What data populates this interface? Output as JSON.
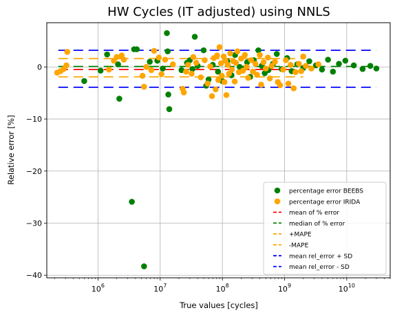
{
  "chart_data": {
    "type": "scatter",
    "title": "HW Cycles (IT adjusted) using NNLS",
    "xlabel": "True values [cycles]",
    "ylabel": "Relative error [%]",
    "xscale": "log",
    "xlim": [
      150000,
      50000000000
    ],
    "ylim": [
      -40.5,
      8.5
    ],
    "xticks": [
      {
        "value": 1000000,
        "base": "10",
        "exp": "6"
      },
      {
        "value": 10000000,
        "base": "10",
        "exp": "7"
      },
      {
        "value": 100000000,
        "base": "10",
        "exp": "8"
      },
      {
        "value": 1000000000,
        "base": "10",
        "exp": "9"
      },
      {
        "value": 10000000000,
        "base": "10",
        "exp": "10"
      }
    ],
    "yticks": [
      {
        "value": 0,
        "label": "0"
      },
      {
        "value": -10,
        "label": "−10"
      },
      {
        "value": -20,
        "label": "−20"
      },
      {
        "value": -30,
        "label": "−30"
      },
      {
        "value": -40,
        "label": "−40"
      }
    ],
    "grid": true,
    "legend_position": "bottom-right",
    "series": [
      {
        "name": "percentage error BEEBS",
        "kind": "scatter",
        "color": "#008000",
        "points": [
          [
            600000,
            -2.7
          ],
          [
            1100000,
            -0.7
          ],
          [
            1400000,
            2.4
          ],
          [
            2100000,
            0.5
          ],
          [
            2200000,
            -6.1
          ],
          [
            3500000,
            -25.9
          ],
          [
            3800000,
            3.4
          ],
          [
            4200000,
            3.4
          ],
          [
            5500000,
            -38.3
          ],
          [
            6800000,
            1.0
          ],
          [
            9000000,
            1.2
          ],
          [
            11000000,
            -0.3
          ],
          [
            12800000,
            6.5
          ],
          [
            13200000,
            3.0
          ],
          [
            13500000,
            -5.3
          ],
          [
            14000000,
            -8.1
          ],
          [
            22000000,
            -0.6
          ],
          [
            27000000,
            0.8
          ],
          [
            30000000,
            1.3
          ],
          [
            33000000,
            -0.4
          ],
          [
            36000000,
            5.8
          ],
          [
            40000000,
            0.2
          ],
          [
            50000000,
            3.2
          ],
          [
            55000000,
            -3.6
          ],
          [
            60000000,
            -2.4
          ],
          [
            70000000,
            0.4
          ],
          [
            85000000,
            -0.9
          ],
          [
            100000000,
            -2.7
          ],
          [
            120000000,
            1.1
          ],
          [
            140000000,
            -1.6
          ],
          [
            160000000,
            2.3
          ],
          [
            190000000,
            0.0
          ],
          [
            220000000,
            -0.3
          ],
          [
            250000000,
            0.9
          ],
          [
            280000000,
            -1.9
          ],
          [
            320000000,
            1.3
          ],
          [
            380000000,
            3.2
          ],
          [
            430000000,
            0.2
          ],
          [
            480000000,
            -1.2
          ],
          [
            550000000,
            -0.6
          ],
          [
            650000000,
            0.6
          ],
          [
            750000000,
            2.5
          ],
          [
            900000000,
            -0.4
          ],
          [
            1100000000,
            1.7
          ],
          [
            1300000000,
            -0.8
          ],
          [
            1600000000,
            0.5
          ],
          [
            2000000000,
            -0.2
          ],
          [
            2500000000,
            1.1
          ],
          [
            3200000000,
            0.3
          ],
          [
            4000000000,
            -0.5
          ],
          [
            5000000000,
            1.4
          ],
          [
            6000000000,
            -0.9
          ],
          [
            7500000000,
            0.6
          ],
          [
            9500000000,
            1.2
          ],
          [
            13000000000,
            0.3
          ],
          [
            18000000000,
            -0.4
          ],
          [
            24000000000,
            0.2
          ],
          [
            30000000000,
            -0.3
          ]
        ]
      },
      {
        "name": "percentage error IRIDA",
        "kind": "scatter",
        "color": "#ffa500",
        "points": [
          [
            220000,
            -1.1
          ],
          [
            250000,
            -0.8
          ],
          [
            280000,
            -0.4
          ],
          [
            310000,
            0.3
          ],
          [
            320000,
            2.9
          ],
          [
            1500000,
            -0.5
          ],
          [
            1800000,
            1.2
          ],
          [
            2000000,
            1.9
          ],
          [
            2400000,
            2.2
          ],
          [
            2600000,
            1.4
          ],
          [
            5200000,
            -1.7
          ],
          [
            5500000,
            -3.8
          ],
          [
            6000000,
            0.0
          ],
          [
            7200000,
            -0.6
          ],
          [
            8000000,
            3.1
          ],
          [
            9500000,
            1.8
          ],
          [
            10500000,
            -1.4
          ],
          [
            12000000,
            1.4
          ],
          [
            16000000,
            0.5
          ],
          [
            23000000,
            -4.2
          ],
          [
            24000000,
            -4.9
          ],
          [
            26000000,
            -0.9
          ],
          [
            28000000,
            0.4
          ],
          [
            32000000,
            -1.3
          ],
          [
            34000000,
            1.9
          ],
          [
            38000000,
            0.8
          ],
          [
            45000000,
            -2.0
          ],
          [
            52000000,
            1.3
          ],
          [
            58000000,
            -3.2
          ],
          [
            64000000,
            0.1
          ],
          [
            68000000,
            -5.6
          ],
          [
            73000000,
            1.7
          ],
          [
            78000000,
            -4.3
          ],
          [
            82000000,
            2.2
          ],
          [
            86000000,
            -2.5
          ],
          [
            90000000,
            3.8
          ],
          [
            95000000,
            0.7
          ],
          [
            98000000,
            -1.7
          ],
          [
            105000000,
            2.0
          ],
          [
            108000000,
            -2.9
          ],
          [
            112000000,
            1.2
          ],
          [
            116000000,
            -5.4
          ],
          [
            122000000,
            0.4
          ],
          [
            128000000,
            -1.3
          ],
          [
            134000000,
            2.6
          ],
          [
            142000000,
            -0.5
          ],
          [
            150000000,
            1.1
          ],
          [
            158000000,
            -2.8
          ],
          [
            165000000,
            0.8
          ],
          [
            175000000,
            3.0
          ],
          [
            185000000,
            -1.0
          ],
          [
            200000000,
            1.6
          ],
          [
            215000000,
            -0.7
          ],
          [
            230000000,
            2.3
          ],
          [
            245000000,
            0.0
          ],
          [
            260000000,
            -2.1
          ],
          [
            290000000,
            1.3
          ],
          [
            310000000,
            -0.9
          ],
          [
            340000000,
            0.6
          ],
          [
            360000000,
            -1.5
          ],
          [
            400000000,
            2.3
          ],
          [
            420000000,
            -3.4
          ],
          [
            460000000,
            0.9
          ],
          [
            500000000,
            -0.3
          ],
          [
            540000000,
            1.8
          ],
          [
            580000000,
            -2.2
          ],
          [
            620000000,
            0.2
          ],
          [
            700000000,
            1.0
          ],
          [
            780000000,
            -2.9
          ],
          [
            850000000,
            -3.5
          ],
          [
            950000000,
            -0.5
          ],
          [
            1050000000,
            1.3
          ],
          [
            1150000000,
            -3.2
          ],
          [
            1250000000,
            0.4
          ],
          [
            1400000000,
            -4.1
          ],
          [
            1500000000,
            -1.0
          ],
          [
            1700000000,
            0.6
          ],
          [
            1850000000,
            -0.8
          ],
          [
            2000000000,
            2.0
          ],
          [
            2200000000,
            0.2
          ],
          [
            2700000000,
            -0.3
          ],
          [
            3500000000,
            0.5
          ]
        ]
      },
      {
        "name": "mean of % error",
        "kind": "hline",
        "value": -0.5,
        "color": "#ff0000",
        "x_range": [
          230000,
          2000000000
        ]
      },
      {
        "name": "median of % error",
        "kind": "hline",
        "value": 0.1,
        "color": "#008000",
        "x_range": [
          230000,
          30000000000
        ]
      },
      {
        "name": "+MAPE",
        "kind": "hline",
        "value": 1.6,
        "color": "#ffa500",
        "x_range": [
          230000,
          2000000000
        ]
      },
      {
        "name": "-MAPE",
        "kind": "hline",
        "value": -1.9,
        "color": "#ffa500",
        "x_range": [
          230000,
          2000000000
        ]
      },
      {
        "name": "mean rel_error + SD",
        "kind": "hline",
        "value": 3.2,
        "color": "#0000ff",
        "x_range": [
          230000,
          30000000000
        ]
      },
      {
        "name": "mean rel_error - SD",
        "kind": "hline",
        "value": -3.9,
        "color": "#0000ff",
        "x_range": [
          230000,
          30000000000
        ]
      }
    ]
  }
}
